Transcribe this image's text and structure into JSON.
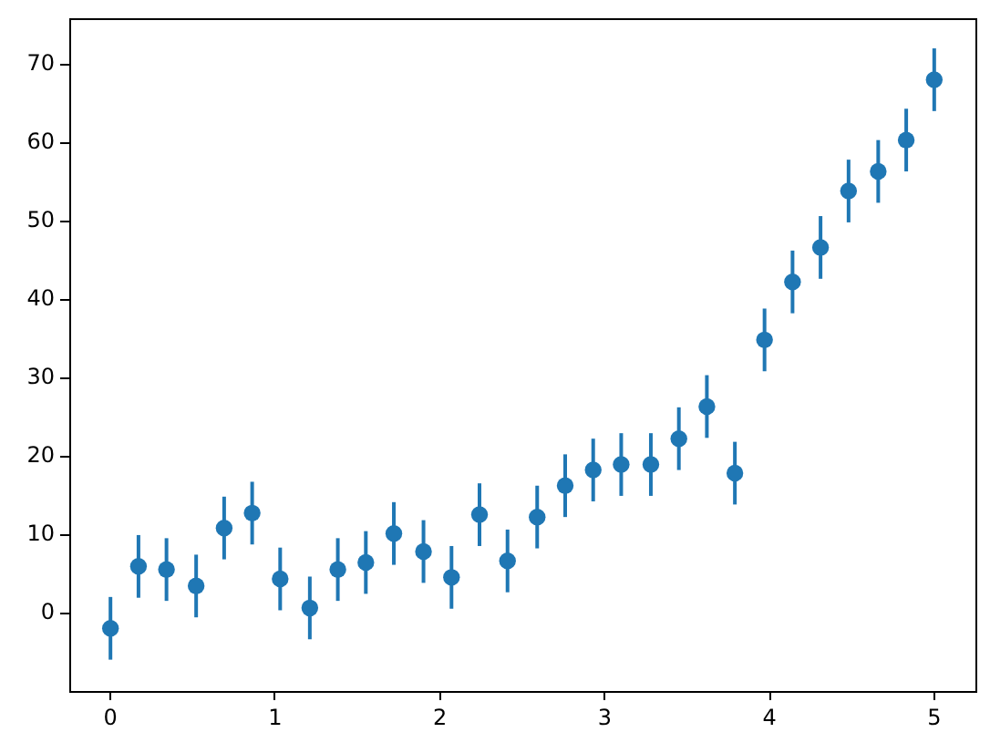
{
  "chart_data": {
    "type": "scatter",
    "x": [
      0,
      0.17,
      0.34,
      0.52,
      0.69,
      0.86,
      1.03,
      1.21,
      1.38,
      1.55,
      1.72,
      1.9,
      2.07,
      2.24,
      2.41,
      2.59,
      2.76,
      2.93,
      3.1,
      3.28,
      3.45,
      3.62,
      3.79,
      3.97,
      4.14,
      4.31,
      4.48,
      4.66,
      4.83,
      5
    ],
    "series": [
      {
        "color": "#1f77b4",
        "values": [
          -1.9,
          6.0,
          5.6,
          3.5,
          10.9,
          12.8,
          4.4,
          0.7,
          5.6,
          6.5,
          10.2,
          7.9,
          4.6,
          12.6,
          6.7,
          12.3,
          16.3,
          18.3,
          19.0,
          19.0,
          22.3,
          26.4,
          17.9,
          34.9,
          42.3,
          46.7,
          53.9,
          56.4,
          60.4,
          68.1
        ],
        "errors": [
          4,
          4,
          4,
          4,
          4,
          4,
          4,
          4,
          4,
          4,
          4,
          4,
          4,
          4,
          4,
          4,
          4,
          4,
          4,
          4,
          4,
          4,
          4,
          4,
          4,
          4,
          4,
          4,
          4,
          4
        ]
      }
    ],
    "xlim": [
      -0.25,
      5.25
    ],
    "ylim": [
      -9.9,
      75.9
    ],
    "xticks": [
      0,
      1,
      2,
      3,
      4,
      5
    ],
    "yticks": [
      0,
      10,
      20,
      30,
      40,
      50,
      60,
      70
    ],
    "grid": false,
    "legend": false,
    "marker": "circle"
  }
}
